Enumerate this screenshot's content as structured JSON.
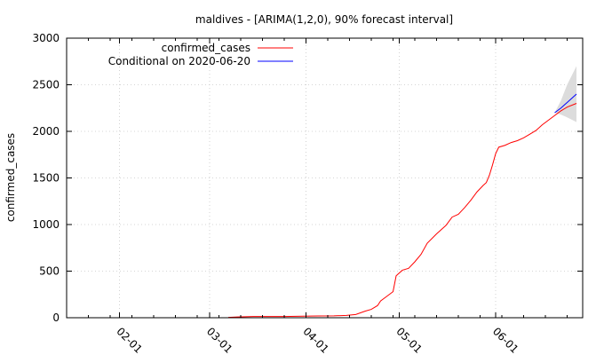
{
  "chart_data": {
    "type": "line",
    "title": "maldives -  [ARIMA(1,2,0), 90% forecast interval]",
    "ylabel": "confirmed_cases",
    "xlabel": "",
    "x_range": [
      "2020-01-15",
      "2020-06-29"
    ],
    "ylim": [
      0,
      3000
    ],
    "y_ticks": [
      0,
      500,
      1000,
      1500,
      2000,
      2500,
      3000
    ],
    "x_ticks": [
      {
        "date": "2020-02-01",
        "label": "02-01"
      },
      {
        "date": "2020-03-01",
        "label": "03-01"
      },
      {
        "date": "2020-04-01",
        "label": "04-01"
      },
      {
        "date": "2020-05-01",
        "label": "05-01"
      },
      {
        "date": "2020-06-01",
        "label": "06-01"
      }
    ],
    "grid": true,
    "legend_position": "top-left",
    "series": [
      {
        "name": "confirmed_cases",
        "color": "#ff0000",
        "points": [
          [
            "2020-03-07",
            4
          ],
          [
            "2020-03-10",
            8
          ],
          [
            "2020-03-15",
            13
          ],
          [
            "2020-03-20",
            13
          ],
          [
            "2020-03-25",
            13
          ],
          [
            "2020-03-31",
            17
          ],
          [
            "2020-04-05",
            19
          ],
          [
            "2020-04-10",
            20
          ],
          [
            "2020-04-14",
            25
          ],
          [
            "2020-04-17",
            35
          ],
          [
            "2020-04-20",
            70
          ],
          [
            "2020-04-22",
            90
          ],
          [
            "2020-04-24",
            130
          ],
          [
            "2020-04-25",
            180
          ],
          [
            "2020-04-27",
            230
          ],
          [
            "2020-04-29",
            280
          ],
          [
            "2020-04-30",
            450
          ],
          [
            "2020-05-02",
            510
          ],
          [
            "2020-05-04",
            530
          ],
          [
            "2020-05-06",
            600
          ],
          [
            "2020-05-08",
            680
          ],
          [
            "2020-05-10",
            800
          ],
          [
            "2020-05-13",
            900
          ],
          [
            "2020-05-16",
            990
          ],
          [
            "2020-05-18",
            1080
          ],
          [
            "2020-05-20",
            1110
          ],
          [
            "2020-05-22",
            1180
          ],
          [
            "2020-05-24",
            1260
          ],
          [
            "2020-05-26",
            1350
          ],
          [
            "2020-05-28",
            1420
          ],
          [
            "2020-05-29",
            1450
          ],
          [
            "2020-05-30",
            1530
          ],
          [
            "2020-05-31",
            1640
          ],
          [
            "2020-06-01",
            1760
          ],
          [
            "2020-06-02",
            1830
          ],
          [
            "2020-06-04",
            1850
          ],
          [
            "2020-06-06",
            1880
          ],
          [
            "2020-06-08",
            1900
          ],
          [
            "2020-06-10",
            1930
          ],
          [
            "2020-06-12",
            1970
          ],
          [
            "2020-06-14",
            2010
          ],
          [
            "2020-06-16",
            2070
          ],
          [
            "2020-06-18",
            2120
          ],
          [
            "2020-06-20",
            2170
          ],
          [
            "2020-06-22",
            2220
          ],
          [
            "2020-06-24",
            2260
          ],
          [
            "2020-06-27",
            2300
          ]
        ]
      },
      {
        "name": "Conditional on 2020-06-20",
        "color": "#0000ff",
        "points": [
          [
            "2020-06-20",
            2200
          ],
          [
            "2020-06-22",
            2250
          ],
          [
            "2020-06-24",
            2310
          ],
          [
            "2020-06-27",
            2400
          ]
        ]
      }
    ],
    "forecast_interval": {
      "level": "90%",
      "color": "#dcdcdc",
      "upper": [
        [
          "2020-06-20",
          2200
        ],
        [
          "2020-06-22",
          2330
        ],
        [
          "2020-06-24",
          2500
        ],
        [
          "2020-06-27",
          2700
        ]
      ],
      "lower": [
        [
          "2020-06-20",
          2200
        ],
        [
          "2020-06-22",
          2180
        ],
        [
          "2020-06-24",
          2150
        ],
        [
          "2020-06-27",
          2100
        ]
      ]
    }
  }
}
